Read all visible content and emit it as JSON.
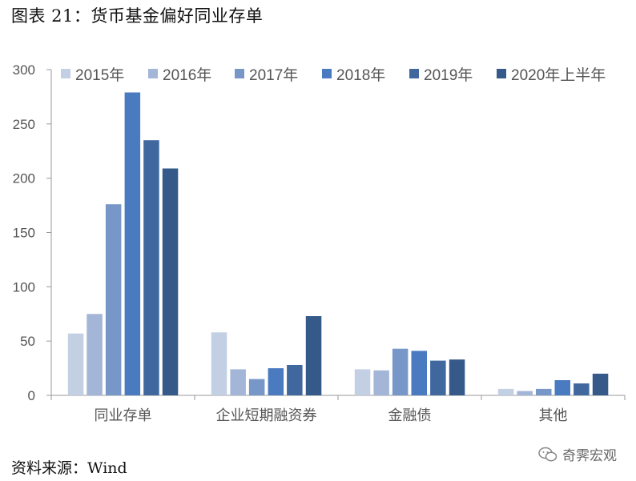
{
  "figure": {
    "title": "图表 21：货币基金偏好同业存单",
    "source": "资料来源：Wind",
    "watermark": "奇霁宏观",
    "colors": [
      "#c3d0e4",
      "#a3b6d8",
      "#7897c9",
      "#4a7bc0",
      "#40689f",
      "#355a8a"
    ]
  },
  "chart_data": {
    "type": "bar",
    "title": "",
    "xlabel": "",
    "ylabel": "",
    "ylim": [
      0,
      300
    ],
    "yticks": [
      "0",
      "50",
      "100",
      "150",
      "200",
      "250",
      "300"
    ],
    "grid": false,
    "legend_position": "top",
    "categories": [
      "同业存单",
      "企业短期融资券",
      "金融债",
      "其他"
    ],
    "series": [
      {
        "name": "2015年",
        "values": [
          57,
          58,
          24,
          6
        ]
      },
      {
        "name": "2016年",
        "values": [
          75,
          24,
          23,
          4
        ]
      },
      {
        "name": "2017年",
        "values": [
          176,
          15,
          43,
          6
        ]
      },
      {
        "name": "2018年",
        "values": [
          279,
          25,
          41,
          14
        ]
      },
      {
        "name": "2019年",
        "values": [
          235,
          28,
          32,
          11
        ]
      },
      {
        "name": "2020年上半年",
        "values": [
          209,
          73,
          33,
          20
        ]
      }
    ]
  }
}
